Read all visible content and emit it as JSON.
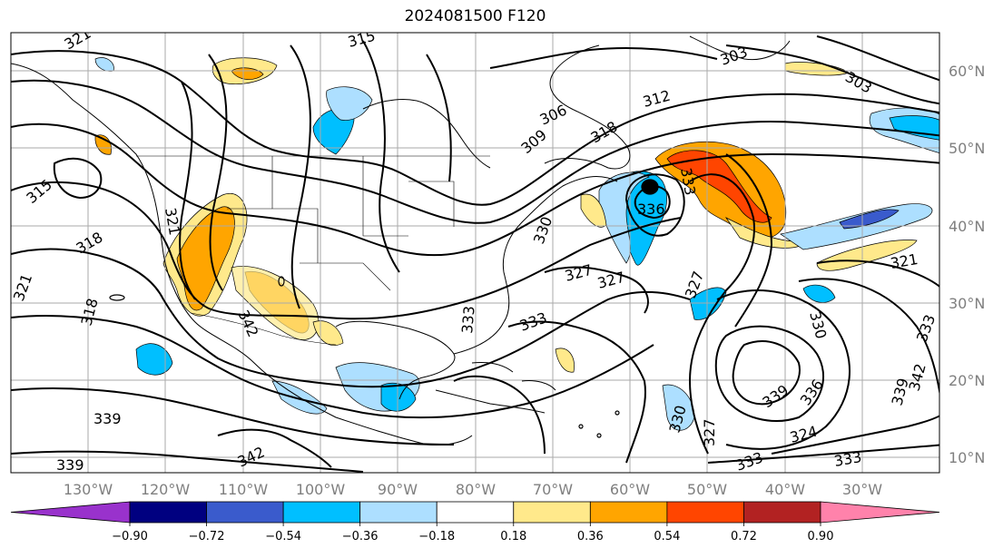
{
  "title": "2024081500 F120",
  "lat_labels": [
    "60°N",
    "50°N",
    "40°N",
    "30°N",
    "20°N",
    "10°N"
  ],
  "lon_labels": [
    "130°W",
    "120°W",
    "110°W",
    "100°W",
    "90°W",
    "80°W",
    "70°W",
    "60°W",
    "50°W",
    "40°W",
    "30°W"
  ],
  "colorbar": {
    "colors": [
      "#9932CC",
      "#000080",
      "#3A5BCC",
      "#00BFFF",
      "#ADDFFF",
      "#FFFFFF",
      "#FFE98B",
      "#FFA500",
      "#FF4500",
      "#B22222",
      "#FF82AB"
    ],
    "tick_labels": [
      "−0.90",
      "−0.72",
      "−0.54",
      "−0.36",
      "−0.18",
      "0.18",
      "0.36",
      "0.54",
      "0.72",
      "0.90"
    ]
  },
  "contour_labels": [
    "321",
    "315",
    "315",
    "318",
    "321",
    "318",
    "321",
    "306",
    "309",
    "312",
    "303",
    "303",
    "318",
    "336",
    "333",
    "330",
    "327",
    "327",
    "327",
    "333",
    "333",
    "342",
    "342",
    "339",
    "339",
    "330",
    "327",
    "333",
    "339",
    "336",
    "324",
    "333",
    "339",
    "342",
    "330",
    "321",
    "333"
  ]
}
